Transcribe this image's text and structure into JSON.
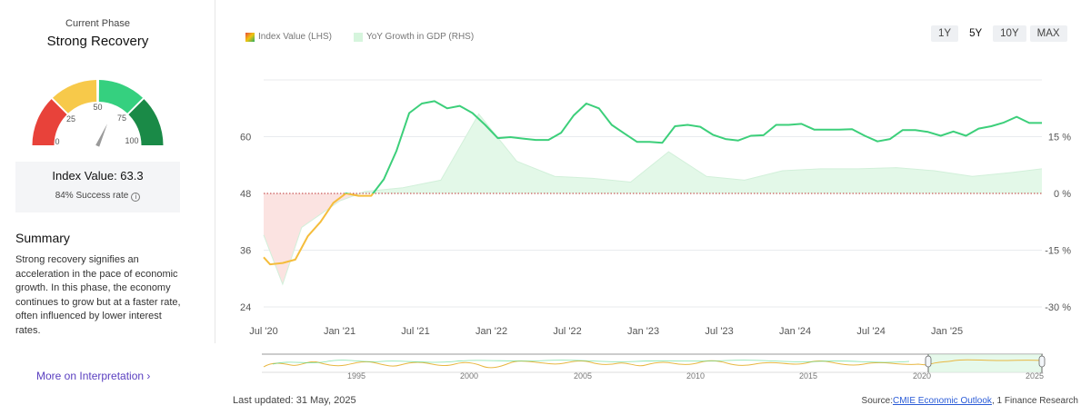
{
  "left_panel": {
    "phase_label": "Current Phase",
    "phase_name": "Strong Recovery",
    "gauge": {
      "ticks": [
        "0",
        "25",
        "50",
        "75",
        "100"
      ],
      "segment_colors": [
        "#e8423a",
        "#f7c94a",
        "#35d07f",
        "#1a8a47"
      ],
      "needle_value": 63.3
    },
    "index_label": "Index Value: 63.3",
    "success_rate": "84% Success rate",
    "summary_title": "Summary",
    "summary_text": "Strong recovery signifies an acceleration in the pace of economic growth. In this phase, the economy continues to grow but at a faster rate, often influenced by lower interest rates.",
    "more_link": "More on Interpretation"
  },
  "legend": {
    "index": "Index Value (LHS)",
    "yoy": "YoY Growth in GDP (RHS)"
  },
  "range_buttons": [
    {
      "label": "1Y",
      "active": false
    },
    {
      "label": "5Y",
      "active": true
    },
    {
      "label": "10Y",
      "active": false
    },
    {
      "label": "MAX",
      "active": false
    }
  ],
  "footer": {
    "last_updated": "Last updated: 31 May, 2025",
    "source_prefix": "Source:",
    "source_link": "CMIE Economic Outlook",
    "source_suffix": ", 1 Finance Research"
  },
  "chart_data": {
    "type": "line",
    "x_ticks": [
      "Jul '20",
      "Jan '21",
      "Jul '21",
      "Jan '22",
      "Jul '22",
      "Jan '23",
      "Jul '23",
      "Jan '24",
      "Jul '24",
      "Jan '25"
    ],
    "y_left_ticks": [
      "60",
      "48",
      "36",
      "24"
    ],
    "y_left_values": [
      60,
      48,
      36,
      24
    ],
    "y_right_ticks": [
      "15 %",
      "0 %",
      "-15 %",
      "-30 %"
    ],
    "y_right_values": [
      15,
      0,
      -15,
      -30
    ],
    "ylim_left": [
      24,
      72
    ],
    "ylim_right": [
      -30,
      30
    ],
    "threshold": 48,
    "x_start": "2020-07",
    "series": [
      {
        "name": "Index Value (LHS)",
        "t": [
          0,
          0.5,
          1.5,
          2.5,
          3.5,
          4.5,
          5.5,
          6.5,
          7.5,
          8.5,
          9.5,
          10.5,
          11.5,
          12.5,
          13.5,
          14.5,
          15.5,
          16.5,
          17.5,
          18.5,
          19.5,
          20.5,
          21.5,
          22.5,
          23.5,
          24.5,
          25.5,
          26.5,
          27.5,
          28.5,
          29.5,
          30.5,
          31.5,
          32.5,
          33.5,
          34.5,
          35.5,
          36.5,
          37.5,
          38.5,
          39.5,
          40.5,
          41.5,
          42.5,
          43.5,
          44.5,
          45.5,
          46.5,
          47.5,
          48.5,
          49.5,
          50.5,
          51.5,
          52.5,
          53.5,
          54.5,
          55.5,
          56.5,
          57.5,
          58.5,
          59.5,
          60.5,
          61.5
        ],
        "values": [
          34.5,
          33,
          33.3,
          34,
          39,
          42,
          46,
          48,
          47.5,
          47.5,
          51,
          57,
          65,
          67,
          67.5,
          66,
          66.5,
          65,
          62.5,
          59.7,
          59.9,
          59.6,
          59.3,
          59.3,
          60.8,
          64.5,
          67,
          66,
          62.5,
          60.7,
          58.9,
          58.9,
          58.7,
          62.2,
          62.5,
          62.1,
          60.4,
          59.5,
          59.2,
          60.2,
          60.3,
          62.5,
          62.5,
          62.7,
          61.5,
          61.5,
          61.5,
          61.6,
          60.2,
          59.0,
          59.5,
          61.4,
          61.4,
          61.0,
          60.2,
          61.1,
          60.2,
          61.7,
          62.2,
          63.0,
          64.2,
          62.9,
          62.9
        ]
      },
      {
        "name": "YoY Growth in GDP (RHS)",
        "t": [
          0,
          1.5,
          3,
          6,
          8,
          11,
          14,
          17,
          20,
          23,
          26,
          29,
          32,
          35,
          38,
          41,
          44,
          47,
          50,
          53,
          56,
          59,
          61.5
        ],
        "values": [
          -11,
          -24,
          -9,
          -2,
          0.5,
          1.5,
          3.5,
          21,
          8.5,
          4.5,
          4,
          3,
          11,
          4.5,
          3.5,
          6,
          6.5,
          6.5,
          6.8,
          6,
          4.5,
          5.5,
          6.5
        ]
      }
    ]
  }
}
